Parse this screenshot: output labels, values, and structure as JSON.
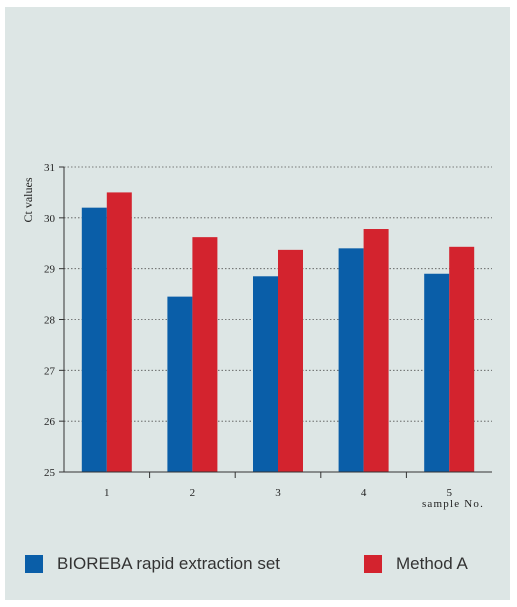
{
  "chart_data": {
    "type": "bar",
    "categories": [
      "1",
      "2",
      "3",
      "4",
      "5"
    ],
    "series": [
      {
        "name": "BIOREBA rapid extraction set",
        "color": "#0a5ea8",
        "values": [
          30.2,
          28.45,
          28.85,
          29.4,
          28.9
        ]
      },
      {
        "name": "Method A",
        "color": "#d3232e",
        "values": [
          30.5,
          29.62,
          29.37,
          29.78,
          29.43
        ]
      }
    ],
    "title": "",
    "xlabel": "sample No.",
    "ylabel": "Ct values",
    "ylim": [
      25,
      31
    ],
    "yticks": [
      "25",
      "26",
      "27",
      "28",
      "29",
      "30",
      "31"
    ],
    "grid": true,
    "legend_position": "bottom"
  }
}
